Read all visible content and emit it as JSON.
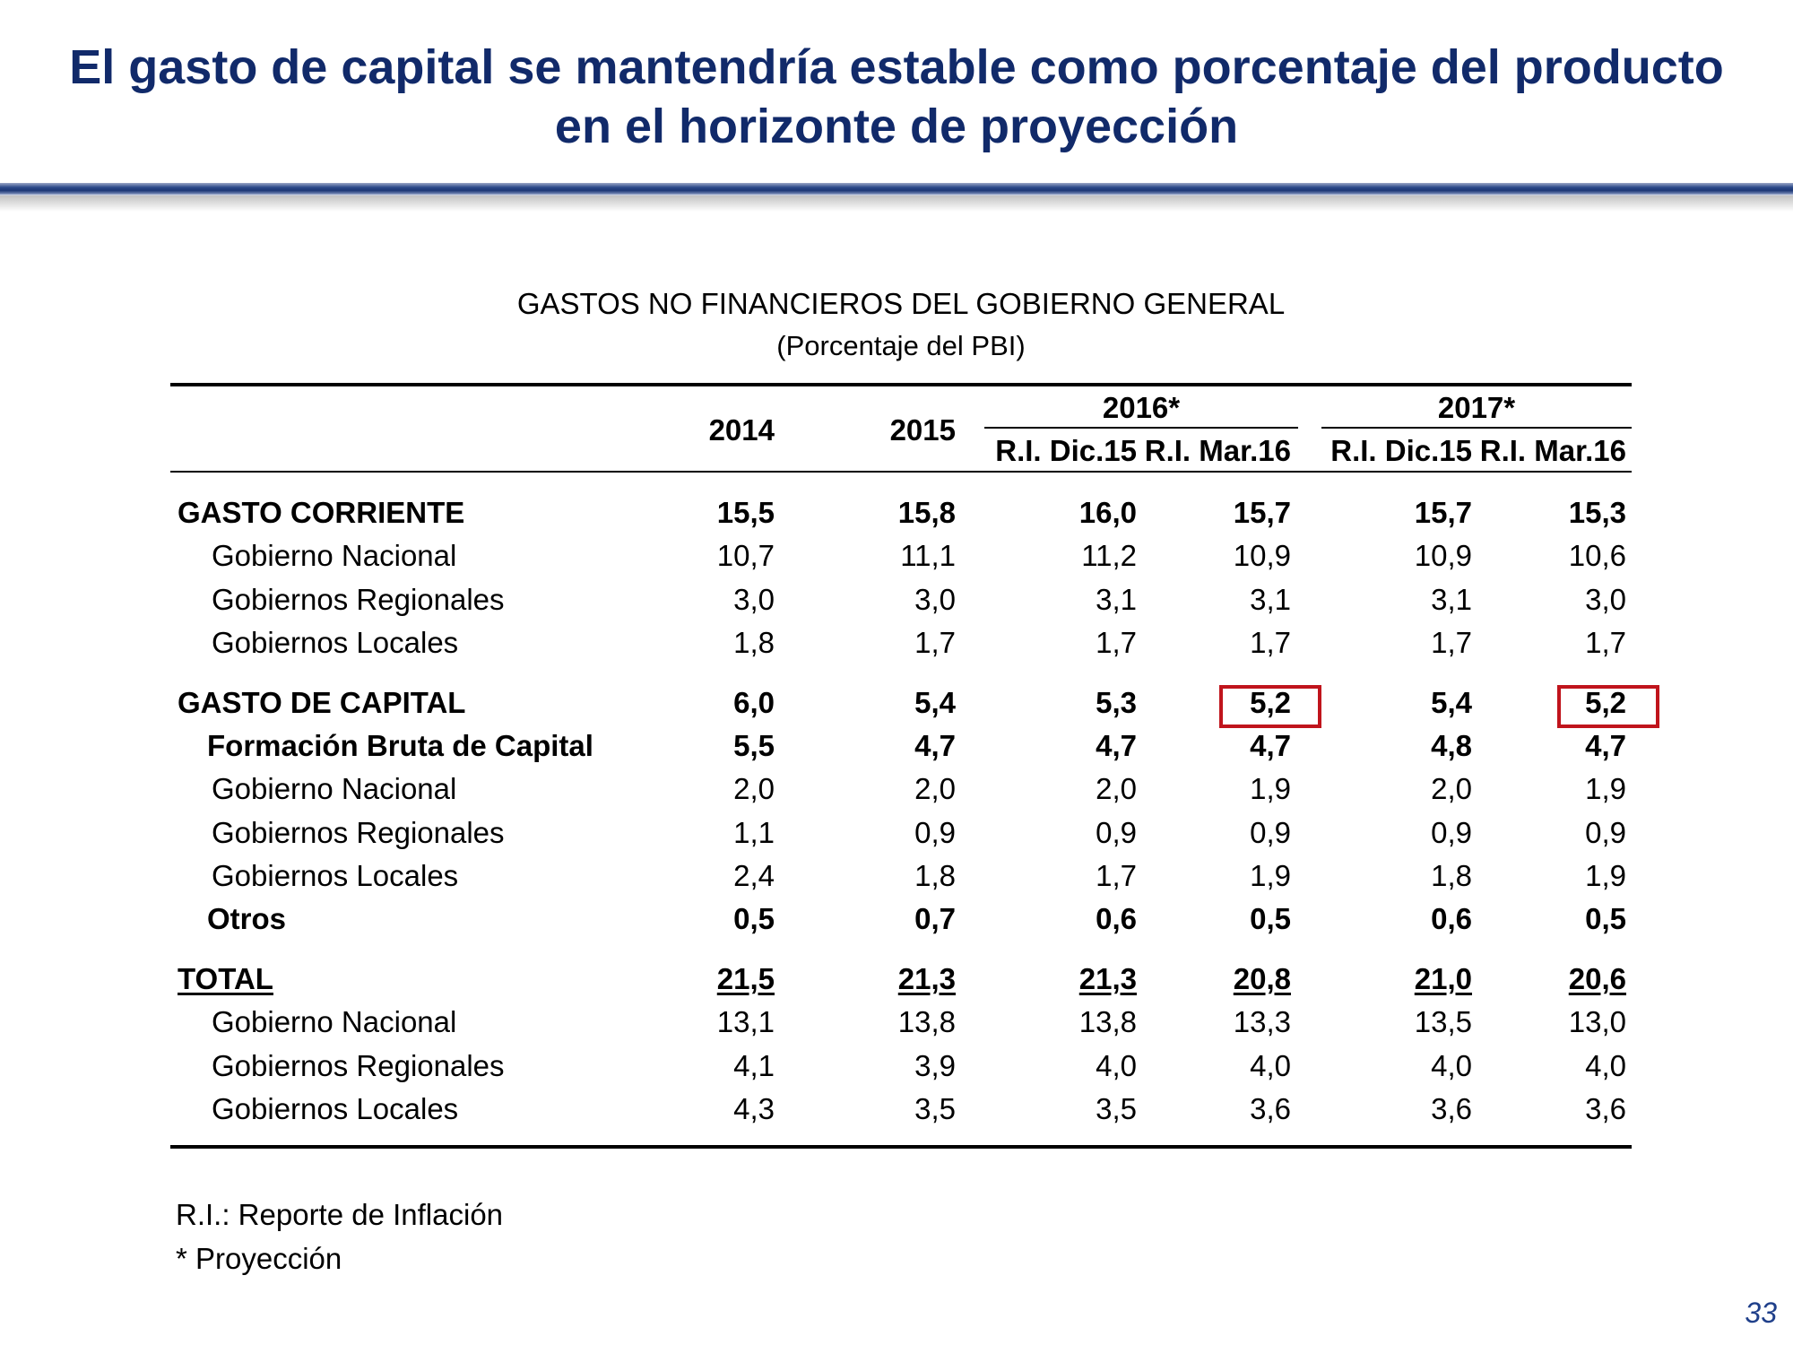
{
  "slide": {
    "title_line1": "El gasto de capital se mantendría estable como porcentaje del producto",
    "title_line2": "en el horizonte de proyección",
    "page_number": "33"
  },
  "table": {
    "title": "GASTOS NO FINANCIEROS DEL GOBIERNO GENERAL",
    "subtitle": "(Porcentaje del PBI)",
    "header": {
      "y2014": "2014",
      "y2015": "2015",
      "y2016": "2016*",
      "y2017": "2017*",
      "sub": [
        "R.I. Dic.15",
        "R.I. Mar.16",
        "R.I. Dic.15",
        "R.I. Mar.16"
      ]
    },
    "rows": [
      {
        "label": "GASTO CORRIENTE",
        "values": [
          "15,5",
          "15,8",
          "16,0",
          "15,7",
          "15,7",
          "15,3"
        ]
      },
      {
        "label": "Gobierno Nacional",
        "values": [
          "10,7",
          "11,1",
          "11,2",
          "10,9",
          "10,9",
          "10,6"
        ]
      },
      {
        "label": "Gobiernos Regionales",
        "values": [
          "3,0",
          "3,0",
          "3,1",
          "3,1",
          "3,1",
          "3,0"
        ]
      },
      {
        "label": "Gobiernos Locales",
        "values": [
          "1,8",
          "1,7",
          "1,7",
          "1,7",
          "1,7",
          "1,7"
        ]
      },
      {
        "label": "GASTO DE CAPITAL",
        "values": [
          "6,0",
          "5,4",
          "5,3",
          "5,2",
          "5,4",
          "5,2"
        ]
      },
      {
        "label": "Formación Bruta de Capital",
        "values": [
          "5,5",
          "4,7",
          "4,7",
          "4,7",
          "4,8",
          "4,7"
        ]
      },
      {
        "label": "Gobierno Nacional",
        "values": [
          "2,0",
          "2,0",
          "2,0",
          "1,9",
          "2,0",
          "1,9"
        ]
      },
      {
        "label": "Gobiernos Regionales",
        "values": [
          "1,1",
          "0,9",
          "0,9",
          "0,9",
          "0,9",
          "0,9"
        ]
      },
      {
        "label": "Gobiernos Locales",
        "values": [
          "2,4",
          "1,8",
          "1,7",
          "1,9",
          "1,8",
          "1,9"
        ]
      },
      {
        "label": "Otros",
        "values": [
          "0,5",
          "0,7",
          "0,6",
          "0,5",
          "0,6",
          "0,5"
        ]
      },
      {
        "label": "TOTAL",
        "values": [
          "21,5",
          "21,3",
          "21,3",
          "20,8",
          "21,0",
          "20,6"
        ]
      },
      {
        "label": "Gobierno Nacional",
        "values": [
          "13,1",
          "13,8",
          "13,8",
          "13,3",
          "13,5",
          "13,0"
        ]
      },
      {
        "label": "Gobiernos Regionales",
        "values": [
          "4,1",
          "3,9",
          "4,0",
          "4,0",
          "4,0",
          "4,0"
        ]
      },
      {
        "label": "Gobiernos Locales",
        "values": [
          "4,3",
          "3,5",
          "3,5",
          "3,6",
          "3,6",
          "3,6"
        ]
      }
    ],
    "footnotes": [
      "R.I.: Reporte de Inflación",
      "* Proyección"
    ],
    "highlight_color": "#c0141c"
  }
}
